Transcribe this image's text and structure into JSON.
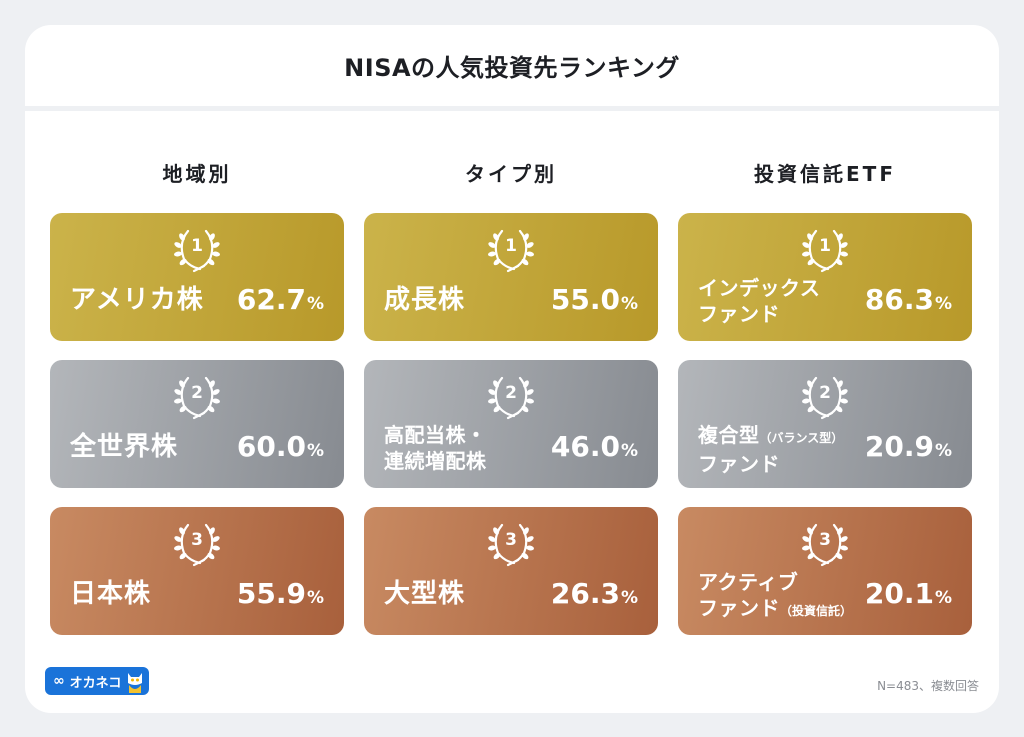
{
  "title": "NISAの人気投資先ランキング",
  "columns": [
    {
      "heading": "地域別",
      "ranks": [
        {
          "rank": "1",
          "label_line1": "アメリカ株",
          "label_line2": "",
          "label_suffix": "",
          "value": "62.7",
          "unit": "%"
        },
        {
          "rank": "2",
          "label_line1": "全世界株",
          "label_line2": "",
          "label_suffix": "",
          "value": "60.0",
          "unit": "%"
        },
        {
          "rank": "3",
          "label_line1": "日本株",
          "label_line2": "",
          "label_suffix": "",
          "value": "55.9",
          "unit": "%"
        }
      ]
    },
    {
      "heading": "タイプ別",
      "ranks": [
        {
          "rank": "1",
          "label_line1": "成長株",
          "label_line2": "",
          "label_suffix": "",
          "value": "55.0",
          "unit": "%"
        },
        {
          "rank": "2",
          "label_line1": "高配当株・",
          "label_line2": "連続増配株",
          "label_suffix": "",
          "value": "46.0",
          "unit": "%"
        },
        {
          "rank": "3",
          "label_line1": "大型株",
          "label_line2": "",
          "label_suffix": "",
          "value": "26.3",
          "unit": "%"
        }
      ]
    },
    {
      "heading": "投資信託ETF",
      "ranks": [
        {
          "rank": "1",
          "label_line1": "インデックス",
          "label_line2": "ファンド",
          "label_suffix": "",
          "line1_suffix": "",
          "value": "86.3",
          "unit": "%"
        },
        {
          "rank": "2",
          "label_line1": "複合型",
          "line1_suffix": "（バランス型）",
          "label_line2": "ファンド",
          "label_suffix": "",
          "value": "20.9",
          "unit": "%"
        },
        {
          "rank": "3",
          "label_line1": "アクティブ",
          "line1_suffix": "",
          "label_line2": "ファンド",
          "label_suffix": "（投資信託）",
          "value": "20.1",
          "unit": "%"
        }
      ]
    }
  ],
  "colors": {
    "gold": "#c1a63a",
    "silver": "#9c9fa4",
    "bronze": "#b7734d",
    "logo": "#1a73d9"
  },
  "footer": {
    "logo_mark": "∞",
    "logo_text": "オカネコ",
    "note": "N=483、複数回答"
  }
}
